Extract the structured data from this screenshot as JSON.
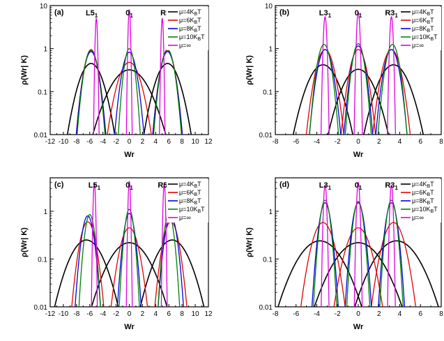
{
  "legend_entries": [
    "μ=4K_BT",
    "μ=6K_BT",
    "μ=8K_BT",
    "μ=10K_BT",
    "μ=∞"
  ],
  "colors": [
    "#000000",
    "#e00000",
    "#0000e0",
    "#008000",
    "#e000e0"
  ],
  "chart_data": [
    {
      "type": "line",
      "panel": "(a)",
      "xlabel": "Wr",
      "ylabel": "ρ(Wr| K)",
      "xlim": [
        -12,
        12
      ],
      "ylim": [
        0.01,
        10
      ],
      "yscale": "log",
      "xticks": [
        -12,
        -10,
        -8,
        -6,
        -4,
        -2,
        0,
        2,
        4,
        6,
        8,
        10,
        12
      ],
      "yticks": [
        0.01,
        0.1,
        1,
        10
      ],
      "ytick_labels": [
        "0.01",
        "0.1",
        "1",
        "10"
      ],
      "peaks": [
        {
          "main": "L5",
          "sub": "1",
          "x": -5.7
        },
        {
          "main": "0",
          "sub": "1",
          "x": 0
        },
        {
          "main": "R5",
          "sub": "1",
          "x": 5.7
        }
      ],
      "legend": "top-right",
      "series": [
        {
          "name": "μ=4K_BT",
          "color": "#000000",
          "centers": [
            -5.8,
            0,
            5.8
          ],
          "peak": [
            0.45,
            0.32,
            0.45
          ],
          "sigma": [
            1.3,
            2.1,
            1.3
          ]
        },
        {
          "name": "μ=6K_BT",
          "color": "#e00000",
          "centers": [
            -5.8,
            0,
            5.8
          ],
          "peak": [
            0.9,
            0.48,
            0.9
          ],
          "sigma": [
            0.75,
            1.2,
            0.75
          ]
        },
        {
          "name": "μ=8K_BT",
          "color": "#0000e0",
          "centers": [
            -5.8,
            0,
            5.8
          ],
          "peak": [
            0.85,
            0.82,
            0.85
          ],
          "sigma": [
            0.75,
            0.75,
            0.75
          ]
        },
        {
          "name": "μ=10K_BT",
          "color": "#008000",
          "centers": [
            -5.8,
            0,
            5.8
          ],
          "peak": [
            0.95,
            1.0,
            0.95
          ],
          "sigma": [
            0.7,
            0.55,
            0.7
          ]
        },
        {
          "name": "μ=∞",
          "color": "#e000e0",
          "centers": [
            -5,
            0,
            5
          ],
          "peak": [
            5.0,
            8.0,
            5.0
          ],
          "sigma": [
            0.12,
            0.12,
            0.12
          ]
        }
      ]
    },
    {
      "type": "line",
      "panel": "(b)",
      "xlabel": "Wr",
      "ylabel": "ρ(Wr| K)",
      "xlim": [
        -8,
        8
      ],
      "ylim": [
        0.01,
        10
      ],
      "yscale": "log",
      "xticks": [
        -8,
        -6,
        -4,
        -2,
        0,
        2,
        4,
        6,
        8
      ],
      "yticks": [
        0.01,
        0.1,
        1,
        10
      ],
      "ytick_labels": [
        "0.01",
        "0.1",
        "1",
        "10"
      ],
      "peaks": [
        {
          "main": "L3",
          "sub": "1",
          "x": -3.2
        },
        {
          "main": "0",
          "sub": "1",
          "x": 0
        },
        {
          "main": "R3",
          "sub": "1",
          "x": 3.2
        }
      ],
      "legend": "top-right",
      "series": [
        {
          "name": "μ=4K_BT",
          "color": "#000000",
          "centers": [
            -3.4,
            0,
            3.4
          ],
          "peak": [
            0.42,
            0.33,
            0.42
          ],
          "sigma": [
            1.05,
            1.1,
            1.05
          ]
        },
        {
          "name": "μ=6K_BT",
          "color": "#e00000",
          "centers": [
            -3.2,
            0,
            3.2
          ],
          "peak": [
            0.95,
            0.95,
            0.95
          ],
          "sigma": [
            0.6,
            0.55,
            0.6
          ]
        },
        {
          "name": "μ=8K_BT",
          "color": "#0000e0",
          "centers": [
            -3.2,
            0,
            3.2
          ],
          "peak": [
            0.95,
            1.15,
            0.95
          ],
          "sigma": [
            0.5,
            0.45,
            0.5
          ]
        },
        {
          "name": "μ=10K_BT",
          "color": "#008000",
          "centers": [
            -3.3,
            0,
            3.3
          ],
          "peak": [
            1.25,
            1.3,
            1.25
          ],
          "sigma": [
            0.45,
            0.4,
            0.45
          ]
        },
        {
          "name": "μ=∞",
          "color": "#e000e0",
          "centers": [
            -3.2,
            0,
            3.2
          ],
          "peak": [
            5.5,
            7.0,
            5.5
          ],
          "sigma": [
            0.11,
            0.11,
            0.11
          ]
        }
      ]
    },
    {
      "type": "line",
      "panel": "(c)",
      "xlabel": "Wr",
      "ylabel": "ρ(Wr| K)",
      "xlim": [
        -12,
        12
      ],
      "ylim": [
        0.01,
        5
      ],
      "yscale": "log",
      "xticks": [
        -12,
        -10,
        -8,
        -6,
        -4,
        -2,
        0,
        2,
        4,
        6,
        8,
        10,
        12
      ],
      "yticks": [
        0.01,
        0.1,
        1
      ],
      "ytick_labels": [
        "0.01",
        "0.1",
        "1"
      ],
      "peaks": [
        {
          "main": "L5",
          "sub": "1",
          "x": -5.3
        },
        {
          "main": "0",
          "sub": "1",
          "x": 0
        },
        {
          "main": "R5",
          "sub": "1",
          "x": 5.3
        }
      ],
      "legend": "top-right",
      "series": [
        {
          "name": "μ=4K_BT",
          "color": "#000000",
          "centers": [
            -6.5,
            0,
            6.5
          ],
          "peak": [
            0.25,
            0.22,
            0.25
          ],
          "sigma": [
            1.9,
            2.3,
            1.9
          ]
        },
        {
          "name": "μ=6K_BT",
          "color": "#e00000",
          "centers": [
            -6.3,
            0,
            6.3
          ],
          "peak": [
            0.6,
            0.45,
            0.6
          ],
          "sigma": [
            0.85,
            1.0,
            0.85
          ]
        },
        {
          "name": "μ=8K_BT",
          "color": "#0000e0",
          "centers": [
            -6.3,
            0,
            6.3
          ],
          "peak": [
            0.8,
            0.9,
            0.8
          ],
          "sigma": [
            0.65,
            0.6,
            0.65
          ]
        },
        {
          "name": "μ=10K_BT",
          "color": "#008000",
          "centers": [
            -6.0,
            0,
            6.0
          ],
          "peak": [
            0.85,
            1.1,
            0.85
          ],
          "sigma": [
            0.55,
            0.5,
            0.55
          ]
        },
        {
          "name": "μ=∞",
          "color": "#e000e0",
          "centers": [
            -5.3,
            0,
            5.3
          ],
          "peak": [
            3.8,
            4.2,
            3.8
          ],
          "sigma": [
            0.13,
            0.13,
            0.13
          ]
        }
      ]
    },
    {
      "type": "line",
      "panel": "(d)",
      "xlabel": "Wr",
      "ylabel": "ρ(Wr| K)",
      "xlim": [
        -8,
        8
      ],
      "ylim": [
        0.01,
        5
      ],
      "yscale": "log",
      "xticks": [
        -8,
        -6,
        -4,
        -2,
        0,
        2,
        4,
        6,
        8
      ],
      "yticks": [
        0.01,
        0.1,
        1
      ],
      "ytick_labels": [
        "0.01",
        "0.1",
        "1"
      ],
      "peaks": [
        {
          "main": "L3",
          "sub": "1",
          "x": -3.2
        },
        {
          "main": "0",
          "sub": "1",
          "x": 0
        },
        {
          "main": "R3",
          "sub": "1",
          "x": 3.2
        }
      ],
      "legend": "top-right",
      "series": [
        {
          "name": "μ=4K_BT",
          "color": "#000000",
          "centers": [
            -3.7,
            0,
            3.7
          ],
          "peak": [
            0.24,
            0.22,
            0.24
          ],
          "sigma": [
            1.6,
            1.7,
            1.6
          ]
        },
        {
          "name": "μ=6K_BT",
          "color": "#e00000",
          "centers": [
            -3.4,
            0,
            3.4
          ],
          "peak": [
            0.58,
            0.45,
            0.58
          ],
          "sigma": [
            0.75,
            0.85,
            0.75
          ]
        },
        {
          "name": "μ=8K_BT",
          "color": "#0000e0",
          "centers": [
            -3.2,
            0,
            3.2
          ],
          "peak": [
            1.5,
            1.5,
            1.5
          ],
          "sigma": [
            0.4,
            0.4,
            0.4
          ]
        },
        {
          "name": "μ=10K_BT",
          "color": "#008000",
          "centers": [
            -3.2,
            0,
            3.2
          ],
          "peak": [
            1.7,
            1.6,
            1.7
          ],
          "sigma": [
            0.35,
            0.35,
            0.35
          ]
        },
        {
          "name": "μ=∞",
          "color": "#e000e0",
          "centers": [
            -3.2,
            0,
            3.2
          ],
          "peak": [
            3.5,
            4.0,
            3.5
          ],
          "sigma": [
            0.11,
            0.11,
            0.11
          ]
        }
      ]
    }
  ]
}
